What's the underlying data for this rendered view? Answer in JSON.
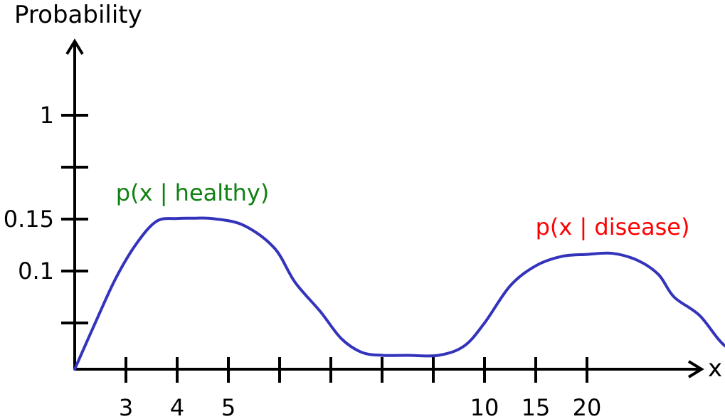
{
  "chart_data": {
    "type": "line",
    "ylabel": "Probability",
    "xlabel": "x",
    "y_ticks": [
      {
        "value": "0.03",
        "label": ""
      },
      {
        "value": "0.1",
        "label": "0.1"
      },
      {
        "value": "0.15",
        "label": "0.15"
      },
      {
        "value": "0.5",
        "label": ""
      },
      {
        "value": "1",
        "label": "1"
      }
    ],
    "x_ticks": [
      {
        "index": 1,
        "label": "3"
      },
      {
        "index": 2,
        "label": "4"
      },
      {
        "index": 3,
        "label": "5"
      },
      {
        "index": 4,
        "label": ""
      },
      {
        "index": 5,
        "label": ""
      },
      {
        "index": 6,
        "label": ""
      },
      {
        "index": 7,
        "label": ""
      },
      {
        "index": 8,
        "label": "10"
      },
      {
        "index": 9,
        "label": "15"
      },
      {
        "index": 10,
        "label": "20"
      }
    ],
    "series": [
      {
        "name": "p(x | healthy)",
        "color": "#3333bb",
        "points": [
          [
            0,
            0
          ],
          [
            0.4,
            0.03
          ],
          [
            0.8,
            0.09
          ],
          [
            1.2,
            0.126
          ],
          [
            1.6,
            0.148
          ],
          [
            2.0,
            0.154
          ],
          [
            2.3,
            0.156
          ],
          [
            2.7,
            0.153
          ],
          [
            3.3,
            0.144
          ],
          [
            3.9,
            0.122
          ],
          [
            4.3,
            0.085
          ],
          [
            4.8,
            0.045
          ],
          [
            5.2,
            0.02
          ],
          [
            5.6,
            0.011
          ],
          [
            6.0,
            0.009
          ],
          [
            6.5,
            0.009
          ],
          [
            7.1,
            0.009
          ],
          [
            7.6,
            0.015
          ],
          [
            8.0,
            0.03
          ],
          [
            8.5,
            0.08
          ],
          [
            9.0,
            0.105
          ],
          [
            9.5,
            0.114
          ],
          [
            10.0,
            0.116
          ],
          [
            10.5,
            0.117
          ],
          [
            11.0,
            0.11
          ],
          [
            11.4,
            0.095
          ],
          [
            11.7,
            0.065
          ],
          [
            12.2,
            0.04
          ],
          [
            12.7,
            0.015
          ],
          [
            13.3,
            0.006
          ],
          [
            13.7,
            0.003
          ]
        ]
      }
    ],
    "annotations": [
      {
        "text": "p(x | healthy)",
        "color": "#108010",
        "anchor_x": 2.3
      },
      {
        "text": "p(x | disease)",
        "color": "#ff0000",
        "anchor_x": 10.5
      }
    ]
  }
}
